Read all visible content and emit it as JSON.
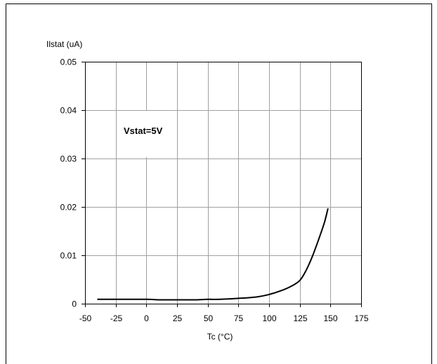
{
  "chart_data": {
    "type": "line",
    "ylabel": "Ilstat (uA)",
    "xlabel": "Tc (°C)",
    "annotation": "Vstat=5V",
    "xlim": [
      -50,
      175
    ],
    "ylim": [
      0,
      0.05
    ],
    "x_ticks": [
      -50,
      -25,
      0,
      25,
      50,
      75,
      100,
      125,
      150,
      175
    ],
    "x_tick_labels": [
      "-50",
      "-25",
      "0",
      "25",
      "50",
      "75",
      "100",
      "125",
      "150",
      "175"
    ],
    "y_ticks": [
      0,
      0.01,
      0.02,
      0.03,
      0.04,
      0.05
    ],
    "y_tick_labels": [
      "0",
      "0.01",
      "0.02",
      "0.03",
      "0.04",
      "0.05"
    ],
    "grid": true,
    "line_color": "#000000",
    "series": [
      {
        "x": [
          -40,
          -25,
          0,
          10,
          25,
          40,
          50,
          60,
          75,
          90,
          100,
          110,
          118,
          125,
          130,
          135,
          140,
          145,
          148
        ],
        "y": [
          0.0009,
          0.0009,
          0.0009,
          0.0008,
          0.0008,
          0.0008,
          0.0009,
          0.0009,
          0.0011,
          0.0014,
          0.0019,
          0.0027,
          0.0036,
          0.0048,
          0.0068,
          0.0096,
          0.013,
          0.0167,
          0.0197
        ]
      }
    ]
  }
}
